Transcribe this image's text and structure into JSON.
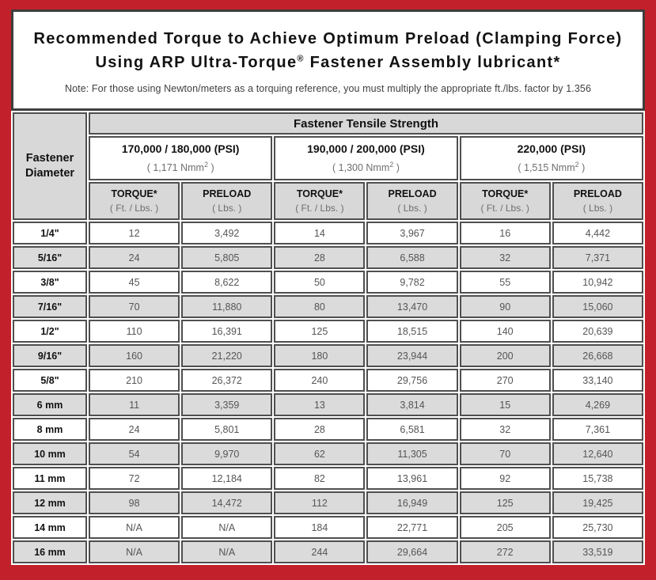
{
  "header": {
    "title_line1": "Recommended Torque to Achieve Optimum Preload (Clamping Force)",
    "title_line2_prefix": "Using ARP Ultra-Torque",
    "registered_mark": "®",
    "title_line2_suffix": " Fastener Assembly lubricant*",
    "note": "Note: For those using Newton/meters as a torquing reference, you must multiply the appropriate ft./lbs. factor by 1.356"
  },
  "colors": {
    "frame_red": "#C2202A",
    "box_border": "#3E3E3E",
    "cell_border": "#4F4F4F",
    "header_gray": "#D8D8D8",
    "row_alt_gray": "#DBDBDB",
    "data_text": "#555555"
  },
  "table": {
    "corner": {
      "line1": "Fastener",
      "line2": "Diameter"
    },
    "tensile_header": "Fastener Tensile Strength",
    "groups": [
      {
        "psi": "170,000 / 180,000 (PSI)",
        "nmm_pre": "( 1,171 Nmm",
        "nmm_sup": "2",
        "nmm_suf": " )"
      },
      {
        "psi": "190,000 / 200,000 (PSI)",
        "nmm_pre": "( 1,300 Nmm",
        "nmm_sup": "2",
        "nmm_suf": " )"
      },
      {
        "psi": "220,000 (PSI)",
        "nmm_pre": "( 1,515 Nmm",
        "nmm_sup": "2",
        "nmm_suf": " )"
      }
    ],
    "col_headers": {
      "torque_label": "TORQUE*",
      "torque_unit": "( Ft. / Lbs. )",
      "preload_label": "PRELOAD",
      "preload_unit": "( Lbs. )"
    },
    "rows": [
      {
        "diameter": "1/4\"",
        "values": [
          "12",
          "3,492",
          "14",
          "3,967",
          "16",
          "4,442"
        ]
      },
      {
        "diameter": "5/16\"",
        "values": [
          "24",
          "5,805",
          "28",
          "6,588",
          "32",
          "7,371"
        ]
      },
      {
        "diameter": "3/8\"",
        "values": [
          "45",
          "8,622",
          "50",
          "9,782",
          "55",
          "10,942"
        ]
      },
      {
        "diameter": "7/16\"",
        "values": [
          "70",
          "11,880",
          "80",
          "13,470",
          "90",
          "15,060"
        ]
      },
      {
        "diameter": "1/2\"",
        "values": [
          "110",
          "16,391",
          "125",
          "18,515",
          "140",
          "20,639"
        ]
      },
      {
        "diameter": "9/16\"",
        "values": [
          "160",
          "21,220",
          "180",
          "23,944",
          "200",
          "26,668"
        ]
      },
      {
        "diameter": "5/8\"",
        "values": [
          "210",
          "26,372",
          "240",
          "29,756",
          "270",
          "33,140"
        ]
      },
      {
        "diameter": "6 mm",
        "values": [
          "11",
          "3,359",
          "13",
          "3,814",
          "15",
          "4,269"
        ]
      },
      {
        "diameter": "8 mm",
        "values": [
          "24",
          "5,801",
          "28",
          "6,581",
          "32",
          "7,361"
        ]
      },
      {
        "diameter": "10 mm",
        "values": [
          "54",
          "9,970",
          "62",
          "11,305",
          "70",
          "12,640"
        ]
      },
      {
        "diameter": "11 mm",
        "values": [
          "72",
          "12,184",
          "82",
          "13,961",
          "92",
          "15,738"
        ]
      },
      {
        "diameter": "12 mm",
        "values": [
          "98",
          "14,472",
          "112",
          "16,949",
          "125",
          "19,425"
        ]
      },
      {
        "diameter": "14 mm",
        "values": [
          "N/A",
          "N/A",
          "184",
          "22,771",
          "205",
          "25,730"
        ]
      },
      {
        "diameter": "16 mm",
        "values": [
          "N/A",
          "N/A",
          "244",
          "29,664",
          "272",
          "33,519"
        ]
      }
    ]
  }
}
